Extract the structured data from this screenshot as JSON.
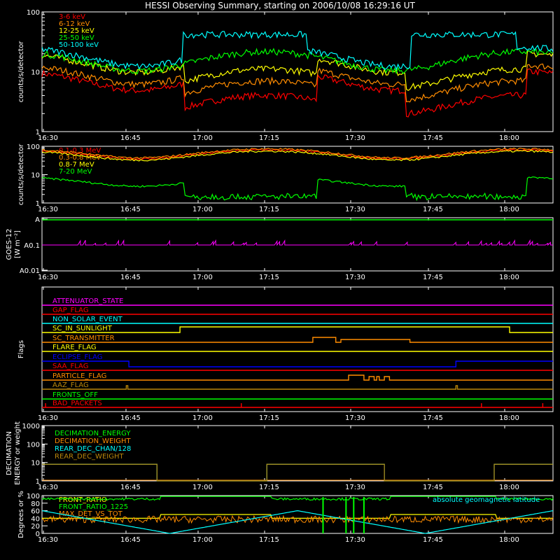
{
  "title": "HESSI Observing Summary, starting on 2006/10/08 16:29:16 UT",
  "x_ticks": [
    "16:30",
    "16:45",
    "17:00",
    "17:15",
    "17:30",
    "17:45",
    "18:00"
  ],
  "chart_data": [
    {
      "type": "line",
      "ylabel": "counts/s/detector",
      "y_scale": "log",
      "ylim": [
        1,
        100
      ],
      "y_ticks": [
        "1",
        "10",
        "100"
      ],
      "series": [
        {
          "name": "3-6 keV",
          "color": "#ff0000"
        },
        {
          "name": "6-12 keV",
          "color": "#ff8c00"
        },
        {
          "name": "12-25 keV",
          "color": "#ffff00"
        },
        {
          "name": "25-50 keV",
          "color": "#00ff00"
        },
        {
          "name": "50-100 keV",
          "color": "#00ffff"
        }
      ]
    },
    {
      "type": "line",
      "ylabel": "counts/s/detector",
      "y_scale": "log",
      "ylim": [
        1,
        100
      ],
      "y_ticks": [
        "1",
        "10",
        "100"
      ],
      "series": [
        {
          "name": "0.1-0.3 MeV",
          "color": "#ff0000"
        },
        {
          "name": "0.3-0.8 MeV",
          "color": "#ff8c00"
        },
        {
          "name": "0.8-7 MeV",
          "color": "#ffff00"
        },
        {
          "name": "7-20 MeV",
          "color": "#00ff00"
        }
      ]
    },
    {
      "type": "line",
      "ylabel": "GOES-12",
      "ylabel2": "[W m⁻²]",
      "y_ticks": [
        "A",
        "A0.1",
        "A0.01"
      ],
      "series": [
        {
          "color": "#00ff00"
        },
        {
          "color": "#ff00ff"
        }
      ]
    },
    {
      "type": "line",
      "ylabel": "Flags",
      "series": [
        {
          "name": "ATTENUATOR_STATE",
          "color": "#ff00ff"
        },
        {
          "name": "GAP_FLAG",
          "color": "#ff0000"
        },
        {
          "name": "NON_SOLAR_EVENT",
          "color": "#00ffff"
        },
        {
          "name": "SC_IN_SUNLIGHT",
          "color": "#ffff00"
        },
        {
          "name": "SC_TRANSMITTER",
          "color": "#ff8c00"
        },
        {
          "name": "FLARE_FLAG",
          "color": "#ffff00"
        },
        {
          "name": "ECLIPSE_FLAG",
          "color": "#0000ff"
        },
        {
          "name": "SAA_FLAG",
          "color": "#ff0000"
        },
        {
          "name": "PARTICLE_FLAG",
          "color": "#ff8c00"
        },
        {
          "name": "AAZ_FLAG",
          "color": "#b8860b"
        },
        {
          "name": "FRONTS_OFF",
          "color": "#00ff00"
        },
        {
          "name": "BAD_PACKETS",
          "color": "#ff0000"
        }
      ]
    },
    {
      "type": "line",
      "ylabel": "DECIMATION",
      "ylabel2": "ENERGY or weight",
      "y_scale": "log",
      "ylim": [
        1,
        1000
      ],
      "y_ticks": [
        "1",
        "10",
        "100",
        "1000"
      ],
      "series": [
        {
          "name": "DECIMATION_ENERGY",
          "color": "#00ff00"
        },
        {
          "name": "DECIMATION_WEIGHT",
          "color": "#ff8c00"
        },
        {
          "name": "REAR_DEC_CHAN/128",
          "color": "#00ffff"
        },
        {
          "name": "REAR_DEC_WEIGHT",
          "color": "#b8860b"
        }
      ]
    },
    {
      "type": "line",
      "ylabel": "Degrees or %",
      "ylim": [
        0,
        100
      ],
      "y_ticks": [
        "0",
        "20",
        "40",
        "60",
        "80",
        "100"
      ],
      "annotation": "absolute geomagnetic latitude",
      "series": [
        {
          "name": "FRONT_RATIO",
          "color": "#ffff00"
        },
        {
          "name": "FRONT_RATIO_1225",
          "color": "#00ff00"
        },
        {
          "name": "MAX_DET_VS_TOT",
          "color": "#ff8c00"
        },
        {
          "color": "#00ffff"
        }
      ]
    }
  ]
}
